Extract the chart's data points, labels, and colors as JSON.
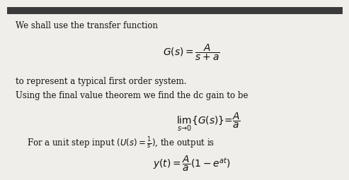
{
  "background_color": "#f0eeea",
  "top_bar_color": "#3a3a3a",
  "text_color": "#111111",
  "line1": "We shall use the transfer function",
  "eq1": "$G(s) = \\dfrac{A}{s+a}$",
  "line2": "to represent a typical first order system.",
  "line3": "Using the final value theorem we find the dc gain to be",
  "eq2": "$\\lim_{s \\to 0}\\{G(s)\\} = \\dfrac{A}{a}$",
  "line4": "For a unit step input $(U(s) = \\frac{1}{s})$, the output is",
  "eq3": "$y(t) = \\dfrac{A}{a}(1 - e^{at})$",
  "fontsize_text": 8.5,
  "fontsize_eq": 10,
  "top_bar_height": 0.045
}
